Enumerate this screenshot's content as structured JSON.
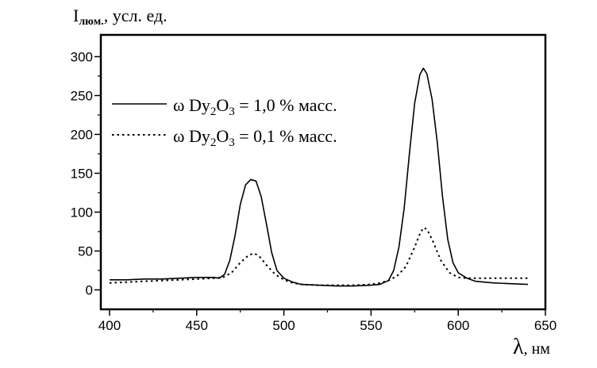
{
  "chart_data": {
    "type": "line",
    "ylabel": {
      "main": "I",
      "sub": "люм.",
      "rest": ", усл. ед."
    },
    "xlabel": {
      "symbol": "λ",
      "unit": ", нм"
    },
    "xlim": [
      395,
      650
    ],
    "ylim": [
      -25,
      328
    ],
    "x_ticks": [
      400,
      450,
      500,
      550,
      600,
      650
    ],
    "y_ticks": [
      0,
      50,
      100,
      150,
      200,
      250,
      300
    ],
    "grid": false,
    "legend_position": "upper-left",
    "series": [
      {
        "name": "ω Dy2O3 = 1,0 % масс.",
        "legend": {
          "omega": "ω Dy",
          "sub1": "2",
          "o": "O",
          "sub2": "3",
          "rest": " = 1,0 % масс."
        },
        "style": "solid",
        "x": [
          400,
          410,
          420,
          430,
          440,
          450,
          455,
          460,
          463,
          466,
          469,
          472,
          475,
          478,
          481,
          484,
          487,
          490,
          493,
          496,
          500,
          505,
          510,
          520,
          530,
          540,
          550,
          555,
          560,
          563,
          566,
          569,
          572,
          575,
          578,
          580,
          582,
          585,
          588,
          591,
          594,
          597,
          600,
          605,
          610,
          620,
          630,
          640
        ],
        "y": [
          13,
          13,
          14,
          14,
          15,
          16,
          16,
          16,
          15,
          20,
          38,
          70,
          110,
          135,
          142,
          140,
          120,
          85,
          48,
          25,
          15,
          10,
          7,
          6,
          5,
          5,
          6,
          7,
          12,
          25,
          55,
          105,
          175,
          240,
          277,
          285,
          278,
          245,
          190,
          120,
          65,
          35,
          22,
          15,
          11,
          9,
          8,
          7
        ]
      },
      {
        "name": "ω Dy2O3 = 0,1 % масс.",
        "legend": {
          "omega": "ω Dy",
          "sub1": "2",
          "o": "O",
          "sub2": "3",
          "rest": " = 0,1 % масс."
        },
        "style": "dotted",
        "x": [
          400,
          410,
          420,
          430,
          440,
          450,
          460,
          465,
          470,
          475,
          480,
          483,
          486,
          490,
          495,
          500,
          505,
          510,
          520,
          530,
          540,
          550,
          555,
          560,
          565,
          570,
          575,
          578,
          580,
          582,
          585,
          590,
          595,
          600,
          605,
          610,
          620,
          630,
          640
        ],
        "y": [
          9,
          10,
          11,
          12,
          13,
          14,
          15,
          16,
          22,
          35,
          45,
          47,
          43,
          32,
          20,
          13,
          9,
          7,
          6,
          6,
          6,
          7,
          9,
          12,
          18,
          30,
          55,
          72,
          80,
          78,
          65,
          38,
          22,
          16,
          15,
          15,
          15,
          15,
          15
        ]
      }
    ]
  }
}
